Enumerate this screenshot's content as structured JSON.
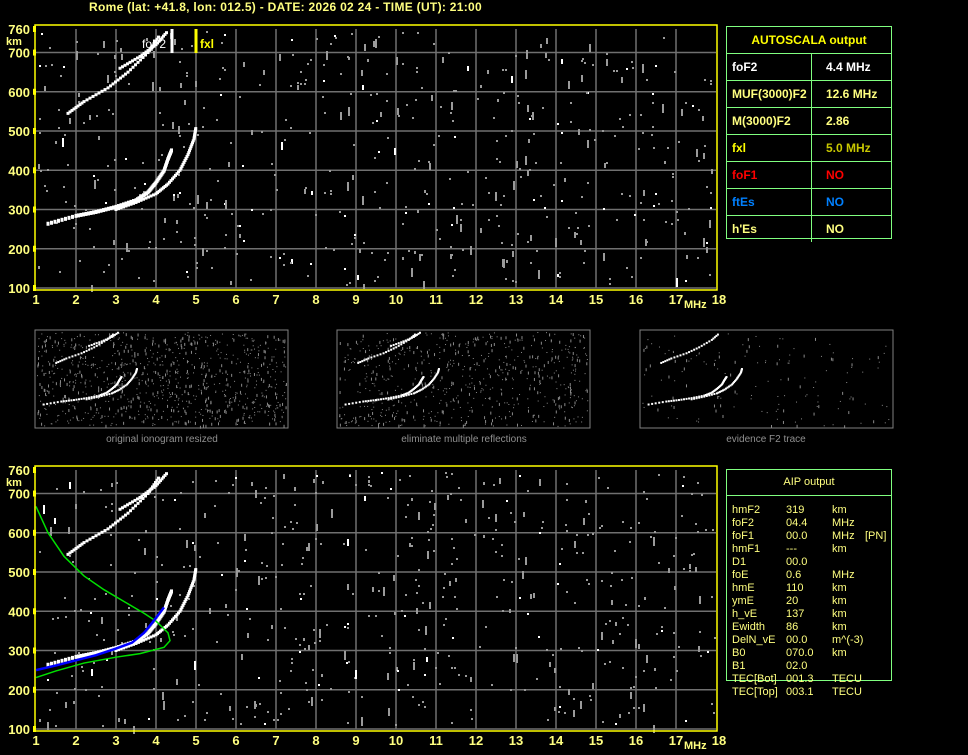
{
  "header": {
    "title": "Rome (lat: +41.8, lon: 012.5) - DATE: 2026 02 24 - TIME (UT): 21:00"
  },
  "autoscala": {
    "title": "AUTOSCALA output",
    "rows": [
      {
        "label": "foF2",
        "value": "4.4 MHz",
        "color": "#ffffff"
      },
      {
        "label": "MUF(3000)F2",
        "value": "12.6 MHz",
        "color": "#ffff80"
      },
      {
        "label": "M(3000)F2",
        "value": "2.86",
        "color": "#ffff80"
      },
      {
        "label": "fxl",
        "value": "5.0 MHz",
        "color": "#c8c800",
        "label_color": "#ffff00"
      },
      {
        "label": "foF1",
        "value": "NO",
        "color": "#ff0000"
      },
      {
        "label": "ftEs",
        "value": "NO",
        "color": "#0080ff"
      },
      {
        "label": "h'Es",
        "value": "NO",
        "color": "#ffff80"
      }
    ]
  },
  "aip": {
    "title": "AIP output",
    "rows": [
      {
        "name": "hmF2",
        "value": "319",
        "unit": "km",
        "extra": ""
      },
      {
        "name": "foF2",
        "value": "04.4",
        "unit": "MHz",
        "extra": ""
      },
      {
        "name": "foF1",
        "value": "00.0",
        "unit": "MHz",
        "extra": "[PN]"
      },
      {
        "name": "hmF1",
        "value": "---",
        "unit": "km",
        "extra": ""
      },
      {
        "name": "D1",
        "value": "00.0",
        "unit": "",
        "extra": ""
      },
      {
        "name": "foE",
        "value": "0.6",
        "unit": "MHz",
        "extra": ""
      },
      {
        "name": "hmE",
        "value": "110",
        "unit": "km",
        "extra": ""
      },
      {
        "name": "ymE",
        "value": "20",
        "unit": "km",
        "extra": ""
      },
      {
        "name": "h_vE",
        "value": "137",
        "unit": "km",
        "extra": ""
      },
      {
        "name": "Ewidth",
        "value": "86",
        "unit": "km",
        "extra": ""
      },
      {
        "name": "DelN_vE",
        "value": "00.0",
        "unit": "m^(-3)",
        "extra": ""
      },
      {
        "name": "B0",
        "value": "070.0",
        "unit": "km",
        "extra": ""
      },
      {
        "name": "B1",
        "value": "02.0",
        "unit": "",
        "extra": ""
      },
      {
        "name": "TEC[Bot]",
        "value": "001.3",
        "unit": "TECU",
        "extra": ""
      },
      {
        "name": "TEC[Top]",
        "value": "003.1",
        "unit": "TECU",
        "extra": ""
      }
    ]
  },
  "thumbnails": [
    {
      "caption": "original ionogram resized"
    },
    {
      "caption": "eliminate multiple reflections"
    },
    {
      "caption": "evidence F2 trace"
    }
  ],
  "chart_data": [
    {
      "type": "scatter",
      "title": "",
      "xlabel": "MHz",
      "ylabel": "km",
      "xlim": [
        1,
        18
      ],
      "ylim": [
        100,
        760
      ],
      "xticks": [
        "1",
        "2",
        "3",
        "4",
        "5",
        "6",
        "7",
        "8",
        "9",
        "10",
        "11",
        "12",
        "13",
        "14",
        "15",
        "16",
        "17",
        "18"
      ],
      "yticks": [
        "100",
        "200",
        "300",
        "400",
        "500",
        "600",
        "700",
        "760"
      ],
      "grid": true,
      "frame_color": "#ffff00",
      "markers": [
        {
          "label": "foF2",
          "x": 4.4,
          "color": "#ffffff"
        },
        {
          "label": "fxl",
          "x": 5.0,
          "color": "#ffff00"
        }
      ],
      "traces": [
        {
          "mode": "o",
          "points": [
            [
              1.3,
              265
            ],
            [
              2,
              285
            ],
            [
              2.5,
              295
            ],
            [
              3,
              308
            ],
            [
              3.5,
              325
            ],
            [
              3.8,
              345
            ],
            [
              4.0,
              370
            ],
            [
              4.2,
              400
            ],
            [
              4.3,
              430
            ],
            [
              4.4,
              455
            ]
          ]
        },
        {
          "mode": "x",
          "points": [
            [
              3.0,
              300
            ],
            [
              3.5,
              318
            ],
            [
              4.0,
              340
            ],
            [
              4.3,
              365
            ],
            [
              4.6,
              400
            ],
            [
              4.8,
              440
            ],
            [
              4.95,
              480
            ],
            [
              5.0,
              510
            ]
          ]
        },
        {
          "mode": "multiple",
          "points": [
            [
              1.8,
              545
            ],
            [
              2.2,
              575
            ],
            [
              2.8,
              610
            ],
            [
              3.3,
              650
            ],
            [
              3.8,
              700
            ],
            [
              4.1,
              745
            ]
          ]
        },
        {
          "mode": "multiple",
          "points": [
            [
              3.1,
              660
            ],
            [
              3.6,
              690
            ],
            [
              4.0,
              720
            ],
            [
              4.3,
              755
            ]
          ]
        }
      ]
    },
    {
      "type": "line",
      "title": "",
      "xlabel": "MHz",
      "ylabel": "km",
      "xlim": [
        1,
        18
      ],
      "ylim": [
        100,
        760
      ],
      "xticks": [
        "1",
        "2",
        "3",
        "4",
        "5",
        "6",
        "7",
        "8",
        "9",
        "10",
        "11",
        "12",
        "13",
        "14",
        "15",
        "16",
        "17",
        "18"
      ],
      "yticks": [
        "100",
        "200",
        "300",
        "400",
        "500",
        "600",
        "700",
        "760"
      ],
      "grid": true,
      "series": [
        {
          "color": "#00e000",
          "points": [
            [
              1,
              667
            ],
            [
              1.3,
              600
            ],
            [
              1.7,
              540
            ],
            [
              2.2,
              490
            ],
            [
              2.7,
              455
            ],
            [
              3.2,
              425
            ],
            [
              3.7,
              395
            ],
            [
              4.0,
              375
            ],
            [
              4.3,
              345
            ],
            [
              4.35,
              325
            ],
            [
              4.2,
              308
            ],
            [
              3.6,
              292
            ],
            [
              3,
              283
            ],
            [
              2.2,
              268
            ],
            [
              1.5,
              248
            ],
            [
              1,
              231
            ]
          ]
        },
        {
          "color": "#0000ff",
          "points": [
            [
              1,
              250
            ],
            [
              1.5,
              262
            ],
            [
              2,
              275
            ],
            [
              2.5,
              288
            ],
            [
              3,
              305
            ],
            [
              3.4,
              320
            ],
            [
              3.7,
              345
            ],
            [
              3.9,
              370
            ],
            [
              4.05,
              390
            ],
            [
              4.2,
              410
            ]
          ]
        }
      ],
      "traces": [
        {
          "mode": "o",
          "points": [
            [
              1.3,
              265
            ],
            [
              2,
              285
            ],
            [
              2.5,
              295
            ],
            [
              3,
              308
            ],
            [
              3.5,
              325
            ],
            [
              3.8,
              345
            ],
            [
              4.0,
              370
            ],
            [
              4.2,
              400
            ],
            [
              4.3,
              430
            ],
            [
              4.4,
              455
            ]
          ]
        },
        {
          "mode": "x",
          "points": [
            [
              3.0,
              300
            ],
            [
              3.5,
              318
            ],
            [
              4.0,
              340
            ],
            [
              4.3,
              365
            ],
            [
              4.6,
              400
            ],
            [
              4.8,
              440
            ],
            [
              4.95,
              480
            ],
            [
              5.0,
              510
            ]
          ]
        },
        {
          "mode": "multiple",
          "points": [
            [
              1.8,
              545
            ],
            [
              2.2,
              575
            ],
            [
              2.8,
              610
            ],
            [
              3.3,
              650
            ],
            [
              3.8,
              700
            ],
            [
              4.1,
              745
            ]
          ]
        },
        {
          "mode": "multiple",
          "points": [
            [
              3.1,
              660
            ],
            [
              3.6,
              690
            ],
            [
              4.0,
              720
            ],
            [
              4.3,
              755
            ]
          ]
        }
      ]
    }
  ]
}
